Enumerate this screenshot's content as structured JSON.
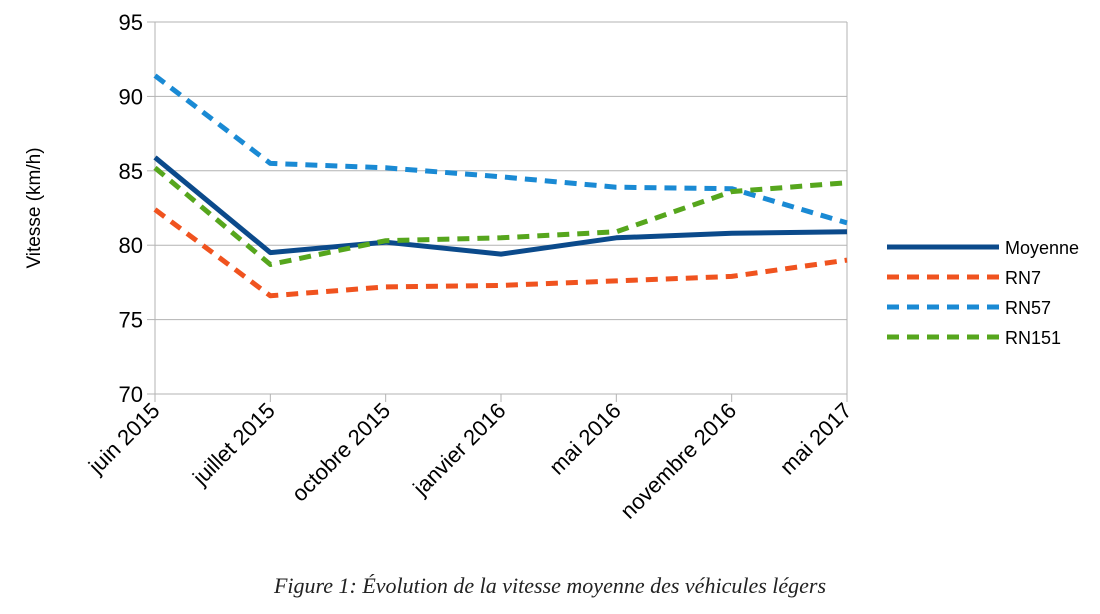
{
  "caption": "Figure 1: Évolution de la vitesse moyenne des véhicules légers",
  "chart_data": {
    "type": "line",
    "title": "",
    "xlabel": "",
    "ylabel": "Vitesse (km/h)",
    "categories": [
      "juin 2015",
      "juillet 2015",
      "octobre 2015",
      "janvier 2016",
      "mai 2016",
      "novembre 2016",
      "mai 2017"
    ],
    "ylim": [
      70,
      95
    ],
    "yticks": [
      70,
      75,
      80,
      85,
      90,
      95
    ],
    "grid": true,
    "legend_position": "right",
    "series": [
      {
        "name": "Moyenne",
        "values": [
          85.9,
          79.5,
          80.2,
          79.4,
          80.5,
          80.8,
          80.9
        ],
        "color": "#0b4a8b",
        "style": "solid"
      },
      {
        "name": "RN7",
        "values": [
          82.4,
          76.6,
          77.2,
          77.3,
          77.6,
          77.9,
          79.0
        ],
        "color": "#f0531f",
        "style": "dashed"
      },
      {
        "name": "RN57",
        "values": [
          91.4,
          85.5,
          85.2,
          84.6,
          83.9,
          83.8,
          81.5
        ],
        "color": "#1a8ad4",
        "style": "dashed"
      },
      {
        "name": "RN151",
        "values": [
          85.2,
          78.7,
          80.3,
          80.5,
          80.9,
          83.6,
          84.2
        ],
        "color": "#56a61d",
        "style": "dashed"
      }
    ]
  }
}
